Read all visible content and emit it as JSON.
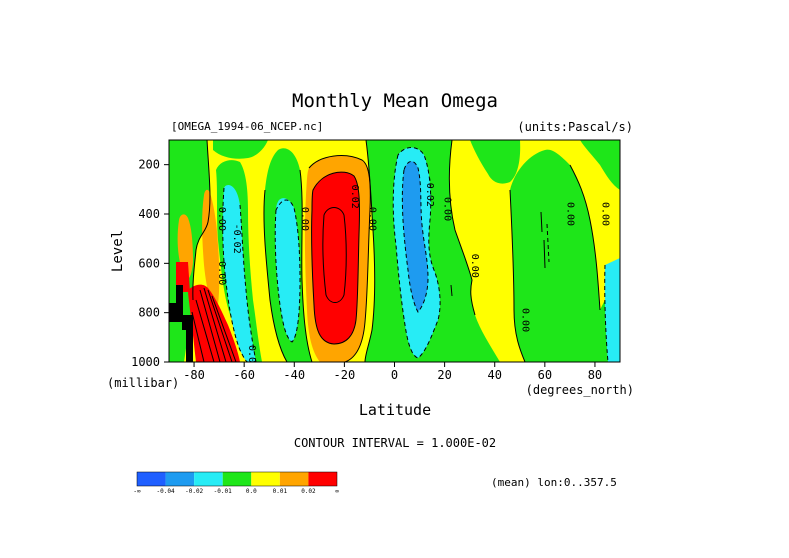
{
  "chart_data": {
    "type": "heatmap",
    "title": "Monthly Mean Omega",
    "dataset_label": "[OMEGA_1994-06_NCEP.nc]",
    "units_label": "(units:Pascal/s)",
    "xlabel": "Latitude",
    "x_units": "(degrees_north)",
    "ylabel": "Level",
    "y_units": "(millibar)",
    "xlim": [
      -90,
      90
    ],
    "ylim": [
      1000,
      100
    ],
    "y_inverted": true,
    "x_ticks": [
      "-80",
      "-60",
      "-40",
      "-20",
      "0",
      "20",
      "40",
      "60",
      "80"
    ],
    "x_tick_values": [
      -80,
      -60,
      -40,
      -20,
      0,
      20,
      40,
      60,
      80
    ],
    "y_ticks": [
      "200",
      "400",
      "600",
      "800",
      "1000"
    ],
    "y_tick_values": [
      200,
      400,
      600,
      800,
      1000
    ],
    "contour_interval": "CONTOUR INTERVAL = 1.000E-02",
    "footnote": "(mean) lon:0..357.5",
    "colorbar": {
      "labels": [
        "-∞",
        "-0.04",
        "-0.02",
        "-0.01",
        "0.0",
        "0.01",
        "0.02",
        "∞"
      ],
      "colors": [
        "#1f5fff",
        "#1e9bf0",
        "#27ecf5",
        "#1ee619",
        "#ffff00",
        "#ffa500",
        "#ff0000"
      ]
    },
    "contour_labels": [
      {
        "text": "0.00",
        "lat": -70,
        "p": 420
      },
      {
        "text": "0.00",
        "lat": -70,
        "p": 640
      },
      {
        "text": "-0.02",
        "lat": -64,
        "p": 500
      },
      {
        "text": "0.00",
        "lat": -37,
        "p": 420
      },
      {
        "text": "0.02",
        "lat": -17,
        "p": 330
      },
      {
        "text": "0.00",
        "lat": -10,
        "p": 420
      },
      {
        "text": "-0.02",
        "lat": 13,
        "p": 310
      },
      {
        "text": "0.00",
        "lat": 20,
        "p": 380
      },
      {
        "text": "0.00",
        "lat": 31,
        "p": 610
      },
      {
        "text": "0.00",
        "lat": 51,
        "p": 830
      },
      {
        "text": "0.00",
        "lat": 69,
        "p": 400
      },
      {
        "text": "0.00",
        "lat": 83,
        "p": 400
      },
      {
        "text": "0.00",
        "lat": -58,
        "p": 980
      }
    ]
  }
}
